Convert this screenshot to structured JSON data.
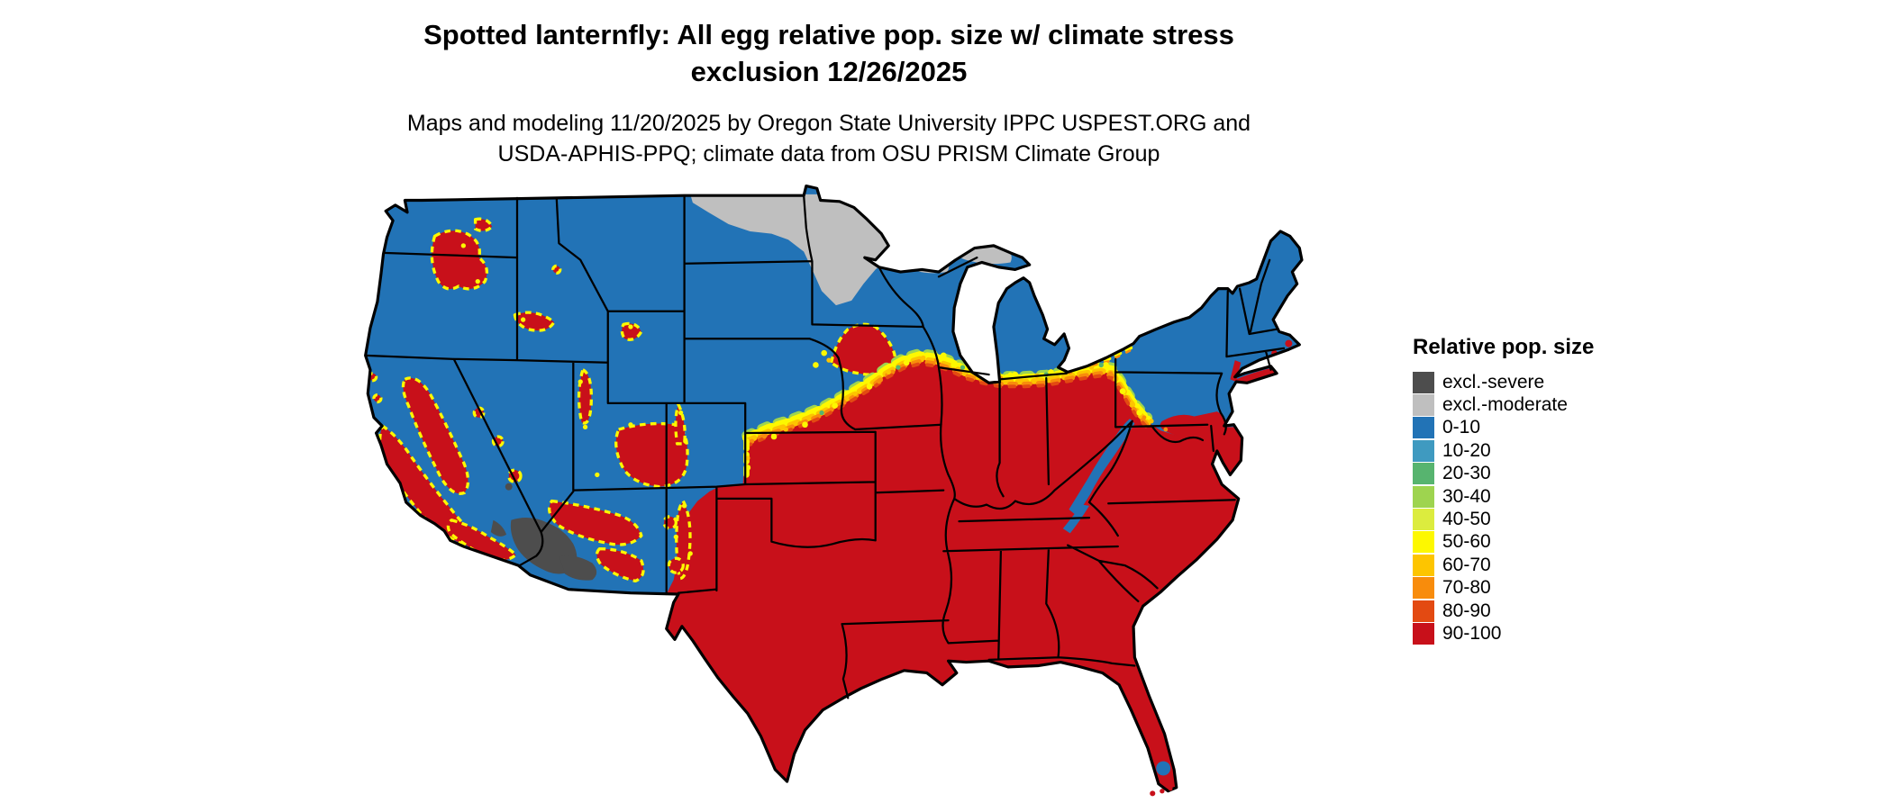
{
  "title": {
    "line1": "Spotted lanternfly: All egg relative pop. size w/ climate stress",
    "line2": "exclusion 12/26/2025"
  },
  "subtitle": {
    "line1": "Maps and modeling 11/20/2025 by Oregon State University IPPC USPEST.ORG and",
    "line2": "USDA-APHIS-PPQ; climate data from OSU PRISM Climate Group"
  },
  "legend": {
    "title": "Relative pop. size",
    "items": [
      {
        "label": "excl.-severe",
        "color": "#4d4d4d"
      },
      {
        "label": "excl.-moderate",
        "color": "#bfbfbf"
      },
      {
        "label": "0-10",
        "color": "#2273b6"
      },
      {
        "label": "10-20",
        "color": "#3f9ac0"
      },
      {
        "label": "20-30",
        "color": "#57b46f"
      },
      {
        "label": "30-40",
        "color": "#9ed44f"
      },
      {
        "label": "40-50",
        "color": "#dcec3e"
      },
      {
        "label": "50-60",
        "color": "#fdf800"
      },
      {
        "label": "60-70",
        "color": "#fdc500"
      },
      {
        "label": "70-80",
        "color": "#f88c0c"
      },
      {
        "label": "80-90",
        "color": "#e34a12"
      },
      {
        "label": "90-100",
        "color": "#c8101a"
      }
    ]
  }
}
